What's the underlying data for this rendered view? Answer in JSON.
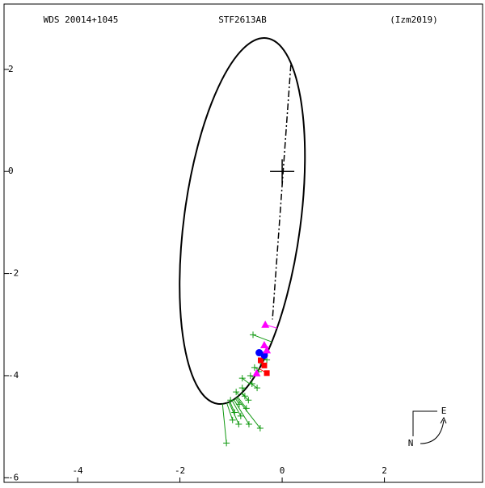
{
  "chart_data": {
    "type": "orbit",
    "title_left": "WDS 20014+1045",
    "title_center": "STF2613AB",
    "title_right": "(Izm2019)",
    "xlim": [
      -5.44,
      3.92
    ],
    "ylim": [
      -6.09,
      3.28
    ],
    "xticks": [
      -4,
      -2,
      0,
      2
    ],
    "yticks": [
      2,
      0,
      -2,
      -4,
      -6
    ],
    "orbit": {
      "cx": -0.78,
      "cy": -0.97,
      "semi_major": 3.61,
      "semi_minor": 1.14,
      "angle": 82.4,
      "color": "#000000"
    },
    "node_line": {
      "x": [
        0.17,
        -0.19
      ],
      "y": [
        2.09,
        -2.9
      ]
    },
    "series": [
      {
        "color": "#119911",
        "marker": "plus",
        "x": [
          -0.57,
          -0.78,
          -1.09,
          -0.85,
          -0.65,
          -0.93,
          -0.73,
          -0.59,
          -0.46,
          -0.84,
          -1.01,
          -0.7,
          -0.49,
          -0.78,
          -0.9,
          -0.62,
          -0.38,
          -0.3,
          -0.81,
          -0.54,
          -0.66,
          -0.43,
          -0.97
        ],
        "y": [
          -3.2,
          -4.05,
          -5.32,
          -4.95,
          -4.95,
          -4.72,
          -4.4,
          -4.16,
          -3.92,
          -4.56,
          -4.48,
          -4.64,
          -4.24,
          -4.24,
          -4.32,
          -4.0,
          -3.77,
          -3.69,
          -4.79,
          -3.84,
          -4.48,
          -5.03,
          -4.87
        ]
      },
      {
        "color": "#ff0000",
        "marker": "square",
        "x": [
          -0.35,
          -0.3,
          -0.42
        ],
        "y": [
          -3.8,
          -3.95,
          -3.7
        ]
      },
      {
        "color": "#0000ff",
        "marker": "circle",
        "x": [
          -0.45,
          -0.35
        ],
        "y": [
          -3.55,
          -3.6
        ]
      },
      {
        "color": "#ff00ff",
        "marker": "triangle",
        "x": [
          -0.33,
          -0.35,
          -0.5,
          -0.3
        ],
        "y": [
          -3.0,
          -3.4,
          -3.95,
          -3.5
        ]
      }
    ],
    "compass": {
      "east": "E",
      "north": "N"
    }
  }
}
